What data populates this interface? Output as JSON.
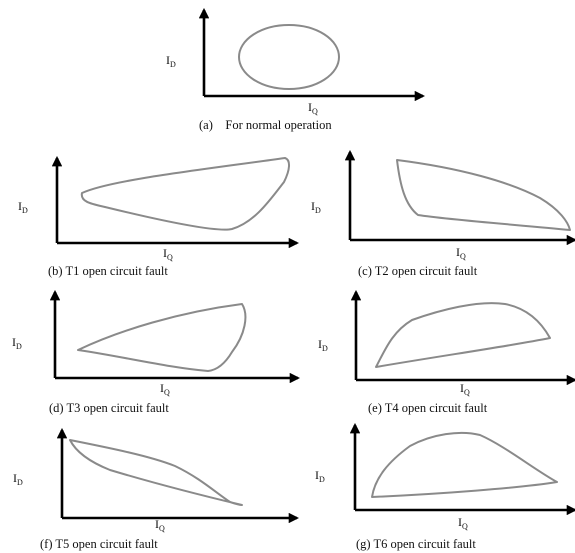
{
  "figure": {
    "axis_label_y": "I",
    "axis_label_y_sub": "D",
    "axis_label_x": "I",
    "axis_label_x_sub": "Q",
    "panels": [
      {
        "id": "a",
        "caption": "(a)    For normal operation",
        "shape": "normal-ellipse"
      },
      {
        "id": "b",
        "caption": "(b) T1 open circuit fault",
        "shape": "t1-fault"
      },
      {
        "id": "c",
        "caption": "(c) T2 open circuit fault",
        "shape": "t2-fault"
      },
      {
        "id": "d",
        "caption": "(d) T3 open circuit fault",
        "shape": "t3-fault"
      },
      {
        "id": "e",
        "caption": "(e) T4 open circuit fault",
        "shape": "t4-fault"
      },
      {
        "id": "f",
        "caption": "(f) T5 open circuit fault",
        "shape": "t5-fault"
      },
      {
        "id": "g",
        "caption": "(g) T6 open circuit fault",
        "shape": "t6-fault"
      }
    ]
  }
}
